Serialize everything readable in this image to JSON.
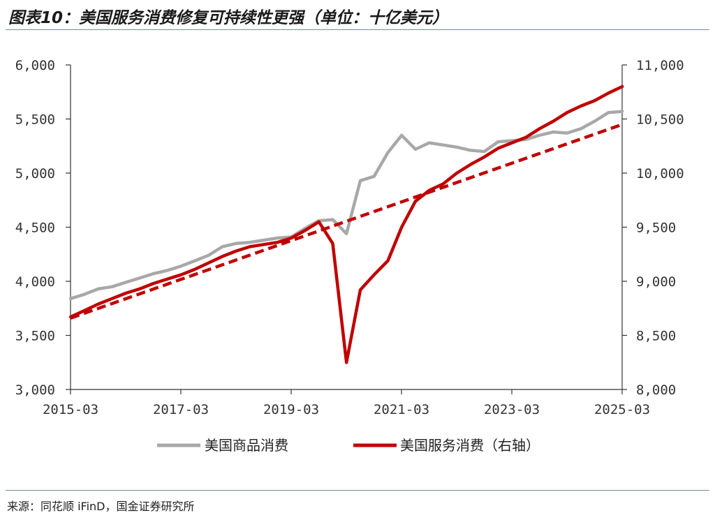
{
  "title": "图表10：美国服务消费修复可持续性更强（单位：十亿美元）",
  "source": "来源：同花顺 iFinD，国金证券研究所",
  "chart_data": {
    "type": "line",
    "left_axis": {
      "ylim": [
        3000,
        6000
      ],
      "ticks": [
        "3,000",
        "3,500",
        "4,000",
        "4,500",
        "5,000",
        "5,500",
        "6,000"
      ],
      "tick_values": [
        3000,
        3500,
        4000,
        4500,
        5000,
        5500,
        6000
      ]
    },
    "right_axis": {
      "ylim": [
        8000,
        11000
      ],
      "ticks": [
        "8,000",
        "8,500",
        "9,000",
        "9,500",
        "10,000",
        "10,500",
        "11,000"
      ],
      "tick_values": [
        8000,
        8500,
        9000,
        9500,
        10000,
        10500,
        11000
      ]
    },
    "x_ticks": [
      "2015-03",
      "2017-03",
      "2019-03",
      "2021-03",
      "2023-03",
      "2025-03"
    ],
    "x_tick_values": [
      2015.167,
      2017.167,
      2019.167,
      2021.167,
      2023.167,
      2025.167
    ],
    "xlim": [
      2015.167,
      2025.167
    ],
    "legend_position": "bottom",
    "colors": {
      "goods": "#a8a8a8",
      "services": "#c00000",
      "trend": "#c00000"
    },
    "series": [
      {
        "name": "美国商品消费",
        "axis": "left",
        "x": [
          2015.17,
          2015.42,
          2015.67,
          2015.92,
          2016.17,
          2016.42,
          2016.67,
          2016.92,
          2017.17,
          2017.42,
          2017.67,
          2017.92,
          2018.17,
          2018.42,
          2018.67,
          2018.92,
          2019.17,
          2019.42,
          2019.67,
          2019.92,
          2020.17,
          2020.42,
          2020.67,
          2020.92,
          2021.17,
          2021.42,
          2021.67,
          2021.92,
          2022.17,
          2022.42,
          2022.67,
          2022.92,
          2023.17,
          2023.42,
          2023.67,
          2023.92,
          2024.17,
          2024.42,
          2024.67,
          2024.92,
          2025.17
        ],
        "values": [
          3840,
          3880,
          3930,
          3950,
          3990,
          4030,
          4070,
          4100,
          4140,
          4190,
          4240,
          4320,
          4350,
          4360,
          4380,
          4400,
          4410,
          4490,
          4560,
          4570,
          4440,
          4930,
          4970,
          5190,
          5350,
          5220,
          5280,
          5260,
          5240,
          5210,
          5200,
          5290,
          5300,
          5310,
          5350,
          5380,
          5370,
          5410,
          5480,
          5560,
          5570
        ]
      },
      {
        "name": "美国服务消费（右轴）",
        "axis": "right",
        "x": [
          2015.17,
          2015.42,
          2015.67,
          2015.92,
          2016.17,
          2016.42,
          2016.67,
          2016.92,
          2017.17,
          2017.42,
          2017.67,
          2017.92,
          2018.17,
          2018.42,
          2018.67,
          2018.92,
          2019.17,
          2019.42,
          2019.67,
          2019.92,
          2020.17,
          2020.42,
          2020.67,
          2020.92,
          2021.17,
          2021.42,
          2021.67,
          2021.92,
          2022.17,
          2022.42,
          2022.67,
          2022.92,
          2023.17,
          2023.42,
          2023.67,
          2023.92,
          2024.17,
          2024.42,
          2024.67,
          2024.92,
          2025.17
        ],
        "values": [
          8670,
          8730,
          8790,
          8840,
          8890,
          8930,
          8980,
          9020,
          9060,
          9110,
          9170,
          9230,
          9280,
          9320,
          9340,
          9360,
          9400,
          9470,
          9550,
          9350,
          8250,
          8920,
          9060,
          9190,
          9500,
          9740,
          9840,
          9900,
          10000,
          10080,
          10150,
          10230,
          10280,
          10330,
          10410,
          10480,
          10560,
          10620,
          10670,
          10740,
          10800
        ]
      },
      {
        "name": "",
        "axis": "right",
        "style": "dashed",
        "x": [
          2015.17,
          2025.17
        ],
        "values": [
          8660,
          10450
        ]
      }
    ]
  },
  "legend": [
    {
      "label": "美国商品消费"
    },
    {
      "label": "美国服务消费（右轴）"
    }
  ]
}
